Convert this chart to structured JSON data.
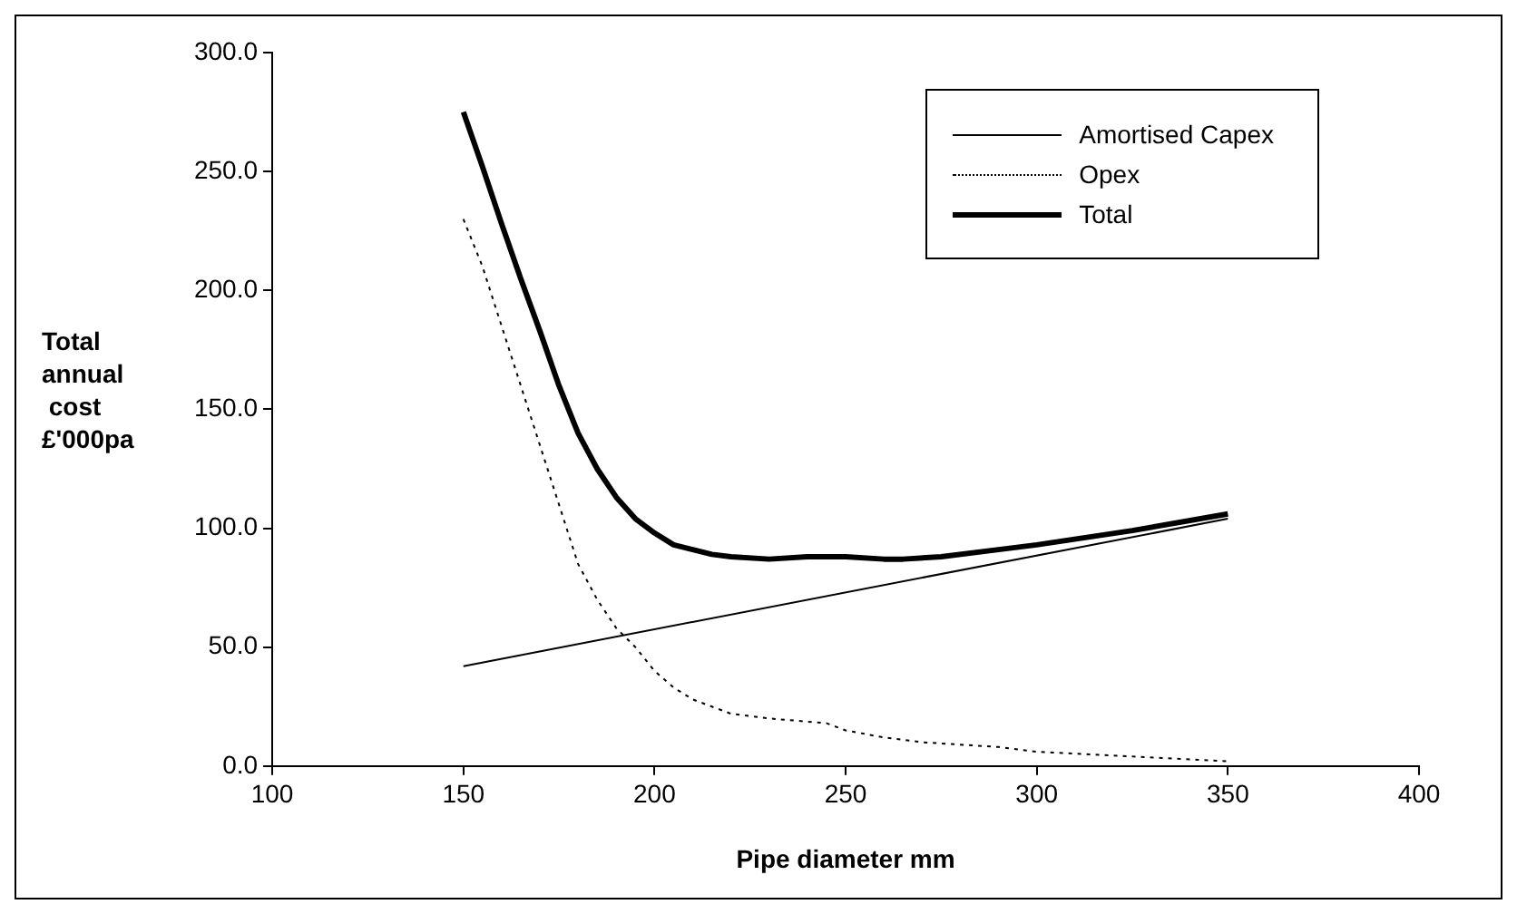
{
  "chart_data": {
    "type": "line",
    "xlabel": "Pipe diameter mm",
    "ylabel": "Total\nannual\n cost\n£'000pa",
    "xlim": [
      100,
      400
    ],
    "xticks": [
      100,
      150,
      200,
      250,
      300,
      350,
      400
    ],
    "ylim": [
      0,
      300
    ],
    "yticks": [
      {
        "value": 0,
        "label": "0.0"
      },
      {
        "value": 50,
        "label": "50.0"
      },
      {
        "value": 100,
        "label": "100.0"
      },
      {
        "value": 150,
        "label": "150.0"
      },
      {
        "value": 200,
        "label": "200.0"
      },
      {
        "value": 250,
        "label": "250.0"
      },
      {
        "value": 300,
        "label": "300.0"
      }
    ],
    "grid": false,
    "legend": "top right",
    "marker": "none",
    "series": [
      {
        "name": "Amortised Capex",
        "color": "#000000",
        "line_style": "solid",
        "x": [
          150,
          350
        ],
        "values": [
          42,
          104
        ]
      },
      {
        "name": "Opex",
        "color": "#000000",
        "line_style": "dotted",
        "x": [
          150,
          155,
          160,
          165,
          170,
          175,
          180,
          185,
          190,
          195,
          200,
          205,
          210,
          215,
          220,
          230,
          245,
          250,
          260,
          270,
          290,
          300,
          325,
          350
        ],
        "values": [
          230,
          210,
          185,
          160,
          135,
          110,
          85,
          70,
          58,
          50,
          40,
          33,
          28,
          25,
          22,
          20,
          18,
          15,
          12,
          10,
          8,
          6,
          4,
          2
        ]
      },
      {
        "name": "Total",
        "color": "#000000",
        "line_style": "solid",
        "x": [
          150,
          155,
          160,
          165,
          170,
          175,
          180,
          185,
          190,
          195,
          200,
          205,
          210,
          215,
          220,
          230,
          240,
          250,
          260,
          265,
          275,
          290,
          300,
          325,
          350
        ],
        "values": [
          275,
          252,
          228,
          205,
          183,
          160,
          140,
          125,
          113,
          104,
          98,
          93,
          91,
          89,
          88,
          87,
          88,
          88,
          87,
          87,
          88,
          91,
          93,
          99,
          106
        ]
      }
    ]
  }
}
